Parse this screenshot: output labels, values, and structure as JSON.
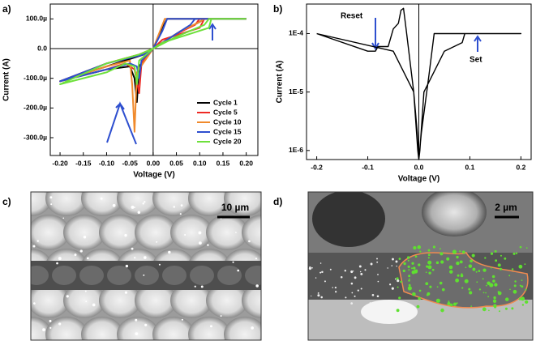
{
  "panel_labels": [
    "a)",
    "b)",
    "c)",
    "d)"
  ],
  "chart_data": [
    {
      "type": "line",
      "x_label": "Voltage (V)",
      "y_label": "Current (A)",
      "xlim": [
        -0.221,
        0.225
      ],
      "ylim": [
        -0.00036,
        0.00015
      ],
      "xticks": [
        {
          "value": -0.2,
          "label": "-0.20"
        },
        {
          "value": -0.15,
          "label": "-0.15"
        },
        {
          "value": -0.1,
          "label": "-0.10"
        },
        {
          "value": -0.05,
          "label": "-0.05"
        },
        {
          "value": 0,
          "label": "0.00"
        },
        {
          "value": 0.05,
          "label": "0.05"
        },
        {
          "value": 0.1,
          "label": "0.10"
        },
        {
          "value": 0.15,
          "label": "0.15"
        },
        {
          "value": 0.2,
          "label": "0.20"
        }
      ],
      "yticks": [
        {
          "value": 0.0001,
          "label": "100.0µ"
        },
        {
          "value": 0,
          "label": "0.0"
        },
        {
          "value": -0.0001,
          "label": "-100.0µ"
        },
        {
          "value": -0.0002,
          "label": "-200.0µ"
        },
        {
          "value": -0.0003,
          "label": "-300.0µ"
        }
      ],
      "zero_lines": true,
      "legend": "lower right",
      "series": [
        {
          "name": "Cycle 1",
          "color": "#000000",
          "x": [
            0.2,
            0.03,
            0.02,
            0,
            -0.03,
            -0.035,
            -0.04,
            -0.05,
            -0.1,
            -0.2,
            -0.1,
            -0.02,
            0,
            0.05,
            0.1,
            0.11,
            0.2
          ],
          "values": [
            0.0001,
            0.0001,
            7e-05,
            0,
            -6e-05,
            -0.00018,
            -0.0001,
            -6e-05,
            -7e-05,
            -0.00011,
            -6e-05,
            -2e-05,
            0,
            5e-05,
            9e-05,
            0.0001,
            0.0001
          ]
        },
        {
          "name": "Cycle 5",
          "color": "#ee2a24",
          "x": [
            0.2,
            0.11,
            0.1,
            0.02,
            0,
            -0.025,
            -0.03,
            -0.04,
            -0.06,
            -0.1,
            -0.2,
            -0.1,
            -0.03,
            0,
            0.05,
            0.09,
            0.1,
            0.2
          ],
          "values": [
            0.0001,
            0.0001,
            7e-05,
            3e-05,
            0,
            -5e-05,
            -0.00015,
            -7e-05,
            -5e-05,
            -7e-05,
            -0.00011,
            -5e-05,
            -2e-05,
            0,
            5e-05,
            8e-05,
            0.0001,
            0.0001
          ]
        },
        {
          "name": "Cycle 10",
          "color": "#f08a2c",
          "x": [
            0.2,
            0.025,
            0.015,
            0,
            -0.035,
            -0.04,
            -0.045,
            -0.05,
            -0.1,
            -0.2,
            -0.1,
            -0.03,
            0,
            0.06,
            0.1,
            0.11,
            0.2
          ],
          "values": [
            0.0001,
            0.0001,
            6e-05,
            0,
            -8e-05,
            -0.00028,
            -0.00012,
            -4e-05,
            -6e-05,
            -0.00011,
            -5e-05,
            -2e-05,
            0,
            6e-05,
            9e-05,
            0.0001,
            0.0001
          ]
        },
        {
          "name": "Cycle 15",
          "color": "#2e4fcf",
          "x": [
            0.2,
            0.03,
            0.02,
            0,
            -0.025,
            -0.03,
            -0.035,
            -0.05,
            -0.1,
            -0.2,
            -0.1,
            -0.02,
            0,
            0.05,
            0.08,
            0.09,
            0.2
          ],
          "values": [
            0.0001,
            0.0001,
            6e-05,
            0,
            -4e-05,
            -0.0001,
            -6e-05,
            -5e-05,
            -7e-05,
            -0.00011,
            -5e-05,
            -2e-05,
            0,
            5e-05,
            8e-05,
            0.0001,
            0.0001
          ]
        },
        {
          "name": "Cycle 20",
          "color": "#6ee03c",
          "x": [
            0.2,
            0.125,
            0.12,
            0.02,
            0,
            -0.03,
            -0.035,
            -0.04,
            -0.06,
            -0.1,
            -0.2,
            -0.1,
            -0.03,
            0,
            0.05,
            0.11,
            0.12,
            0.2
          ],
          "values": [
            0.0001,
            0.0001,
            7e-05,
            2e-05,
            0,
            -4e-05,
            -0.00012,
            -6e-05,
            -5e-05,
            -8e-05,
            -0.00012,
            -5e-05,
            -2e-05,
            0,
            4e-05,
            8e-05,
            0.0001,
            0.0001
          ]
        }
      ]
    },
    {
      "type": "line",
      "x_label": "Voltage (V)",
      "y_label": "Current (A)",
      "log_y": true,
      "xlim": [
        -0.22,
        0.22
      ],
      "ylim": [
        7e-07,
        0.00032
      ],
      "xticks": [
        -0.2,
        -0.1,
        {
          "value": 0,
          "label": "0.0"
        },
        0.1,
        0.2
      ],
      "yticks": [
        {
          "value": 0.0001,
          "label": "1E-4"
        },
        {
          "value": 1e-05,
          "label": "1E-5"
        },
        {
          "value": 1e-06,
          "label": "1E-6"
        }
      ],
      "zero_lines": true,
      "annotations": [
        "Reset",
        "Set"
      ],
      "series": [
        {
          "color": "#000000",
          "x": [
            -0.2,
            -0.1,
            -0.085,
            -0.08,
            -0.06,
            -0.05,
            -0.04,
            -0.035,
            -0.03,
            -0.025,
            -0.01,
            -0.002,
            0,
            0.002,
            0.01,
            0.05,
            0.085,
            0.09,
            0.2,
            0.03,
            0.02,
            0.005,
            0,
            -0.003,
            -0.01,
            -0.05,
            -0.2
          ],
          "values": [
            0.0001,
            5e-05,
            5e-05,
            6e-05,
            6e-05,
            0.00012,
            0.00015,
            0.00025,
            0.00027,
            0.00012,
            1e-05,
            1e-06,
            7e-07,
            1e-06,
            1e-05,
            5e-05,
            7e-05,
            0.0001,
            0.0001,
            0.0001,
            2e-05,
            2e-06,
            7e-07,
            2e-06,
            1e-05,
            5e-05,
            0.0001
          ]
        }
      ]
    }
  ],
  "micrographs": [
    {
      "scale_bar": "10 µm"
    },
    {
      "scale_bar": "2 µm"
    }
  ]
}
